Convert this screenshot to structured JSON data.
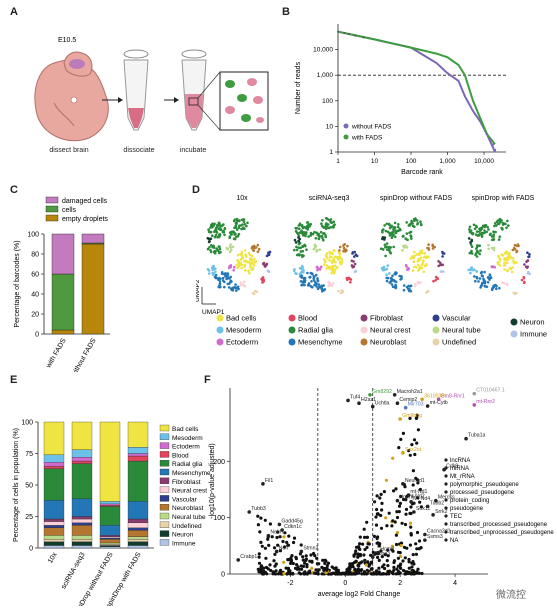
{
  "panels": {
    "A": {
      "label": "A",
      "stage": "E10.5",
      "steps": [
        "dissect brain",
        "dissociate",
        "incubate"
      ]
    },
    "B": {
      "label": "B",
      "chart_data": {
        "type": "line",
        "xlabel": "Barcode rank",
        "ylabel": "Number of reads",
        "xscale": "log",
        "yscale": "log",
        "xticks": [
          "1",
          "10",
          "100",
          "1,000",
          "10,000"
        ],
        "yticks": [
          "1",
          "10",
          "100",
          "1,000",
          "10,000"
        ],
        "threshold": 1000,
        "legend_position": "bottom-left",
        "series": [
          {
            "name": "without FADS",
            "color": "#7b68b5",
            "x": [
              1,
              10,
              100,
              500,
              1000,
              2000,
              3000,
              5000,
              8000,
              12000,
              20000
            ],
            "y": [
              50000,
              25000,
              12000,
              3000,
              1200,
              600,
              150,
              40,
              15,
              5,
              1
            ]
          },
          {
            "name": "with FADS",
            "color": "#3f9c3f",
            "x": [
              1,
              10,
              100,
              500,
              1000,
              2000,
              3000,
              5000,
              8000,
              12000,
              20000
            ],
            "y": [
              50000,
              25000,
              12000,
              7000,
              5000,
              2500,
              1000,
              100,
              20,
              5,
              2
            ]
          }
        ]
      }
    },
    "C": {
      "label": "C",
      "chart_data": {
        "type": "bar",
        "stacked": true,
        "categories": [
          "with FADS",
          "without FADS"
        ],
        "ylabel": "Percentage of barcodes (%)",
        "yticks": [
          "0",
          "20",
          "40",
          "60",
          "80",
          "100"
        ],
        "ylim": [
          0,
          100
        ],
        "series": [
          {
            "name": "empty droplets",
            "color": "#b8860b",
            "values": [
              4,
              90
            ]
          },
          {
            "name": "cells",
            "color": "#4f9a3f",
            "values": [
              56,
              1
            ]
          },
          {
            "name": "damaged cells",
            "color": "#c27bbf",
            "values": [
              40,
              9
            ]
          }
        ]
      }
    },
    "D": {
      "label": "D",
      "columns": [
        "10x",
        "sciRNA-seq3",
        "spinDrop without FADS",
        "spinDrop with FADS"
      ],
      "axis_y": "UMAP2",
      "axis_x": "UMAP1",
      "legend": [
        {
          "name": "Bad cells",
          "color": "#f0e442"
        },
        {
          "name": "Blood",
          "color": "#e2445e"
        },
        {
          "name": "Fibroblast",
          "color": "#8a3b6f"
        },
        {
          "name": "Vascular",
          "color": "#2d3e8a"
        },
        {
          "name": "Neuron",
          "color": "#123d2e"
        },
        {
          "name": "Mesoderm",
          "color": "#6cc1e8"
        },
        {
          "name": "Radial glia",
          "color": "#2a8a3a"
        },
        {
          "name": "Neural crest",
          "color": "#fbd0d8"
        },
        {
          "name": "Neural tube",
          "color": "#b8d98a"
        },
        {
          "name": "Immune",
          "color": "#b0c4e8"
        },
        {
          "name": "Ectoderm",
          "color": "#d06bd0"
        },
        {
          "name": "Mesenchyme",
          "color": "#2377b6"
        },
        {
          "name": "Neuroblast",
          "color": "#b5762f"
        },
        {
          "name": "Undefined",
          "color": "#e8d2a8"
        }
      ]
    },
    "E": {
      "label": "E",
      "chart_data": {
        "type": "bar",
        "stacked": true,
        "categories": [
          "10x",
          "sciRNA-seq3",
          "spinDrop without FADS",
          "spinDrop with FADS"
        ],
        "ylabel": "Percentage of cells in population (%)",
        "yticks": [
          "0",
          "25",
          "50",
          "75",
          "100"
        ],
        "ylim": [
          0,
          100
        ],
        "series": [
          {
            "name": "Immune",
            "color": "#b0c4e8",
            "values": [
              2,
              2,
              1,
              2
            ]
          },
          {
            "name": "Neuron",
            "color": "#123d2e",
            "values": [
              3,
              3,
              1,
              3
            ]
          },
          {
            "name": "Undefined",
            "color": "#e8d2a8",
            "values": [
              2,
              2,
              1,
              2
            ]
          },
          {
            "name": "Neural tube",
            "color": "#b8d98a",
            "values": [
              3,
              3,
              1,
              2
            ]
          },
          {
            "name": "Neuroblast",
            "color": "#b5762f",
            "values": [
              6,
              8,
              3,
              5
            ]
          },
          {
            "name": "Vascular",
            "color": "#2d3e8a",
            "values": [
              2,
              2,
              1,
              2
            ]
          },
          {
            "name": "Neural crest",
            "color": "#fbd0d8",
            "values": [
              3,
              3,
              1,
              4
            ]
          },
          {
            "name": "Fibroblast",
            "color": "#8a3b6f",
            "values": [
              2,
              2,
              1,
              3
            ]
          },
          {
            "name": "Mesenchyme",
            "color": "#2377b6",
            "values": [
              15,
              14,
              8,
              14
            ]
          },
          {
            "name": "Radial glia",
            "color": "#2a8a3a",
            "values": [
              25,
              28,
              15,
              32
            ]
          },
          {
            "name": "Blood",
            "color": "#e2445e",
            "values": [
              2,
              2,
              1,
              4
            ]
          },
          {
            "name": "Ectoderm",
            "color": "#d06bd0",
            "values": [
              3,
              3,
              1,
              2
            ]
          },
          {
            "name": "Mesoderm",
            "color": "#6cc1e8",
            "values": [
              6,
              6,
              2,
              5
            ]
          },
          {
            "name": "Bad cells",
            "color": "#f0e442",
            "values": [
              26,
              22,
              63,
              20
            ]
          }
        ]
      }
    },
    "F": {
      "label": "F",
      "chart_data": {
        "type": "scatter",
        "xlabel": "average log2 Fold Change",
        "ylabel": "-log10(p-value adjusted)",
        "xticks": [
          "-2",
          "0",
          "2",
          "4"
        ],
        "yticks": [
          "0",
          "100",
          "200"
        ],
        "xlim": [
          -4.2,
          5.2
        ],
        "ylim": [
          0,
          330
        ],
        "legend": [
          {
            "name": "lncRNA",
            "color": "#222222"
          },
          {
            "name": "miRNA",
            "color": "#222222"
          },
          {
            "name": "Mt_rRNA",
            "color": "#222222"
          },
          {
            "name": "polymorphic_pseudogene",
            "color": "#222222"
          },
          {
            "name": "processed_pseudogene",
            "color": "#222222"
          },
          {
            "name": "protein_coding",
            "color": "#222222"
          },
          {
            "name": "pseudogene",
            "color": "#222222"
          },
          {
            "name": "TEC",
            "color": "#222222"
          },
          {
            "name": "transcribed_processed_pseudogene",
            "color": "#222222"
          },
          {
            "name": "transcribed_unprocessed_pseudogene",
            "color": "#222222"
          },
          {
            "name": "NA",
            "color": "#222222"
          }
        ],
        "labels": [
          {
            "text": "Gm8292",
            "x": 0.9,
            "y": 318,
            "color": "#3f9c3f"
          },
          {
            "text": "Macroh2a1",
            "x": 1.8,
            "y": 318,
            "color": "#222"
          },
          {
            "text": "Tuf4",
            "x": 0.1,
            "y": 308,
            "color": "#222"
          },
          {
            "text": "H2az1",
            "x": 0.5,
            "y": 303,
            "color": "#222"
          },
          {
            "text": "Cemip2",
            "x": 1.9,
            "y": 303,
            "color": "#222"
          },
          {
            "text": "Uchtla",
            "x": 1.0,
            "y": 297,
            "color": "#222"
          },
          {
            "text": "Mir703",
            "x": 2.2,
            "y": 295,
            "color": "#5577bb"
          },
          {
            "text": "mt-Cytb",
            "x": 3.0,
            "y": 298,
            "color": "#222"
          },
          {
            "text": "361003P",
            "x": 2.8,
            "y": 310,
            "color": "#d4a017"
          },
          {
            "text": "Gm8-Rnr1",
            "x": 3.4,
            "y": 310,
            "color": "#b04fb0"
          },
          {
            "text": "CT010467.1",
            "x": 4.7,
            "y": 320,
            "color": "#999999"
          },
          {
            "text": "mt-Rnr2",
            "x": 4.7,
            "y": 300,
            "color": "#b04fb0"
          },
          {
            "text": "Gm9bhg",
            "x": 2.0,
            "y": 275,
            "color": "#d4a017"
          },
          {
            "text": "Tuba1a",
            "x": 4.4,
            "y": 240,
            "color": "#222"
          },
          {
            "text": "Sox2ot",
            "x": 2.1,
            "y": 215,
            "color": "#d4a017"
          },
          {
            "text": "Cdk8",
            "x": 3.6,
            "y": 185,
            "color": "#222"
          },
          {
            "text": "Neurod1",
            "x": 2.1,
            "y": 160,
            "color": "#222"
          },
          {
            "text": "Fil1",
            "x": -3.0,
            "y": 160,
            "color": "#222"
          },
          {
            "text": "mt-Nd1",
            "x": 2.3,
            "y": 140,
            "color": "#222"
          },
          {
            "text": "mt-Nd2",
            "x": 2.2,
            "y": 132,
            "color": "#222"
          },
          {
            "text": "Hmmr",
            "x": 1.9,
            "y": 130,
            "color": "#222"
          },
          {
            "text": "Mt-Nd4",
            "x": 2.4,
            "y": 128,
            "color": "#222"
          },
          {
            "text": "Mercks",
            "x": 3.3,
            "y": 130,
            "color": "#222"
          },
          {
            "text": "Tubb2",
            "x": 3.0,
            "y": 120,
            "color": "#222"
          },
          {
            "text": "Sox11",
            "x": 2.5,
            "y": 110,
            "color": "#222"
          },
          {
            "text": "Srrk2",
            "x": 3.2,
            "y": 105,
            "color": "#222"
          },
          {
            "text": "Tubb3",
            "x": -3.5,
            "y": 110,
            "color": "#222"
          },
          {
            "text": "Gadd45g",
            "x": -2.4,
            "y": 88,
            "color": "#222"
          },
          {
            "text": "Cdkn1c",
            "x": -2.3,
            "y": 78,
            "color": "#222"
          },
          {
            "text": "Nefm",
            "x": -2.8,
            "y": 68,
            "color": "#222"
          },
          {
            "text": "Cacna2d1",
            "x": 2.9,
            "y": 70,
            "color": "#222"
          },
          {
            "text": "Ssms3",
            "x": 2.9,
            "y": 60,
            "color": "#222"
          },
          {
            "text": "Nefl",
            "x": -2.5,
            "y": 40,
            "color": "#222"
          },
          {
            "text": "Stmn2",
            "x": -1.6,
            "y": 40,
            "color": "#222"
          },
          {
            "text": "Crabp1",
            "x": -3.9,
            "y": 25,
            "color": "#222"
          },
          {
            "text": "Robo3",
            "x": 1.0,
            "y": 30,
            "color": "#222"
          },
          {
            "text": "Hcrtr2",
            "x": 1.2,
            "y": 38,
            "color": "#222"
          }
        ]
      }
    }
  },
  "watermark": "微流控"
}
